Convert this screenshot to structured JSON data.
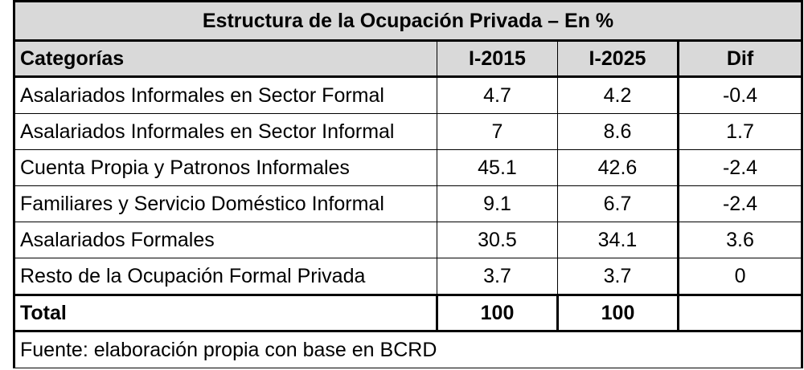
{
  "table": {
    "title": "Estructura de la Ocupación Privada – En %",
    "headers": {
      "category": "Categorías",
      "col1": "I-2015",
      "col2": "I-2025",
      "col3": "Dif"
    },
    "rows": [
      {
        "category": "Asalariados Informales en Sector Formal",
        "v1": "4.7",
        "v2": "4.2",
        "dif": "-0.4"
      },
      {
        "category": "Asalariados Informales en Sector Informal",
        "v1": "7",
        "v2": "8.6",
        "dif": "1.7"
      },
      {
        "category": "Cuenta Propia  y Patronos Informales",
        "v1": "45.1",
        "v2": "42.6",
        "dif": "-2.4"
      },
      {
        "category": "Familiares y Servicio Doméstico Informal",
        "v1": "9.1",
        "v2": "6.7",
        "dif": "-2.4"
      },
      {
        "category": "Asalariados Formales",
        "v1": "30.5",
        "v2": "34.1",
        "dif": "3.6"
      },
      {
        "category": "Resto de la Ocupación Formal Privada",
        "v1": "3.7",
        "v2": "3.7",
        "dif": "0"
      }
    ],
    "total": {
      "label": "Total",
      "v1": "100",
      "v2": "100",
      "dif": ""
    },
    "source": "Fuente: elaboración propia con base en BCRD",
    "colors": {
      "header_bg": "#d9d9d9",
      "border": "#000000"
    }
  }
}
